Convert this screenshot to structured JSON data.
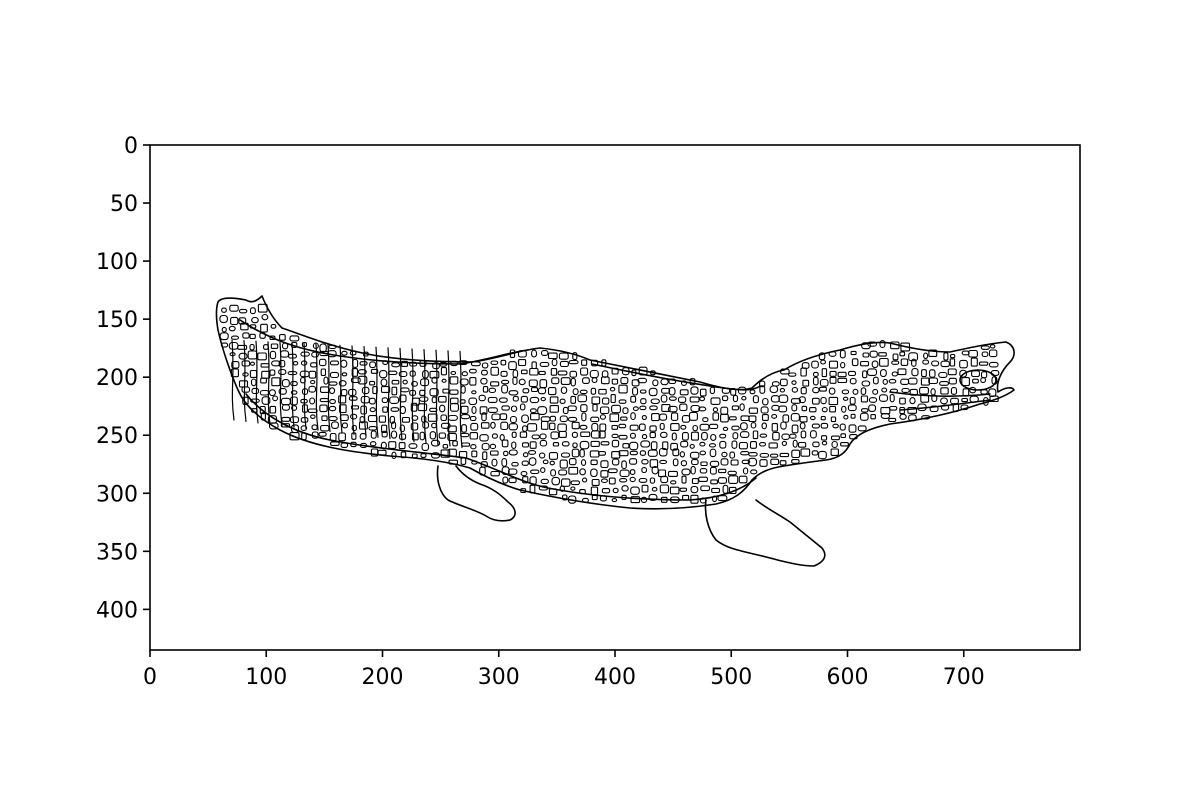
{
  "image": {
    "subject": "alligator",
    "style": "edge-detection line drawing",
    "colors": {
      "background": "#ffffff",
      "edges": "#000000",
      "frame": "#000000"
    }
  },
  "axes": {
    "x": {
      "min": 0,
      "max": 800,
      "ticks": [
        0,
        100,
        200,
        300,
        400,
        500,
        600,
        700
      ]
    },
    "y": {
      "min": 0,
      "max": 435,
      "inverted": true,
      "ticks": [
        0,
        50,
        100,
        150,
        200,
        250,
        300,
        350,
        400
      ]
    },
    "grid": false
  }
}
